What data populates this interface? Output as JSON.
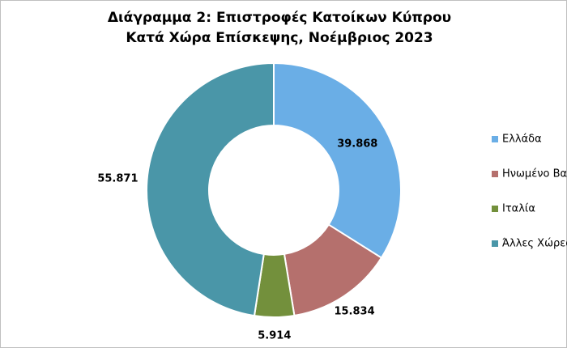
{
  "chart_data": {
    "type": "donut",
    "title": [
      "Διάγραμμα 2: Επιστροφές Κατοίκων Κύπρου",
      "Κατά Χώρα Επίσκεψης, Νοέμβριος 2023"
    ],
    "categories": [
      "Ελλάδα",
      "Ηνωμένο Βασίλειο",
      "Ιταλία",
      "Άλλες Χώρες"
    ],
    "values": [
      39868,
      15834,
      5914,
      55871
    ],
    "value_labels": [
      "39.868",
      "15.834",
      "5.914",
      "55.871"
    ],
    "colors": [
      "#6aaee6",
      "#b5706d",
      "#73903c",
      "#4a96a8"
    ]
  }
}
